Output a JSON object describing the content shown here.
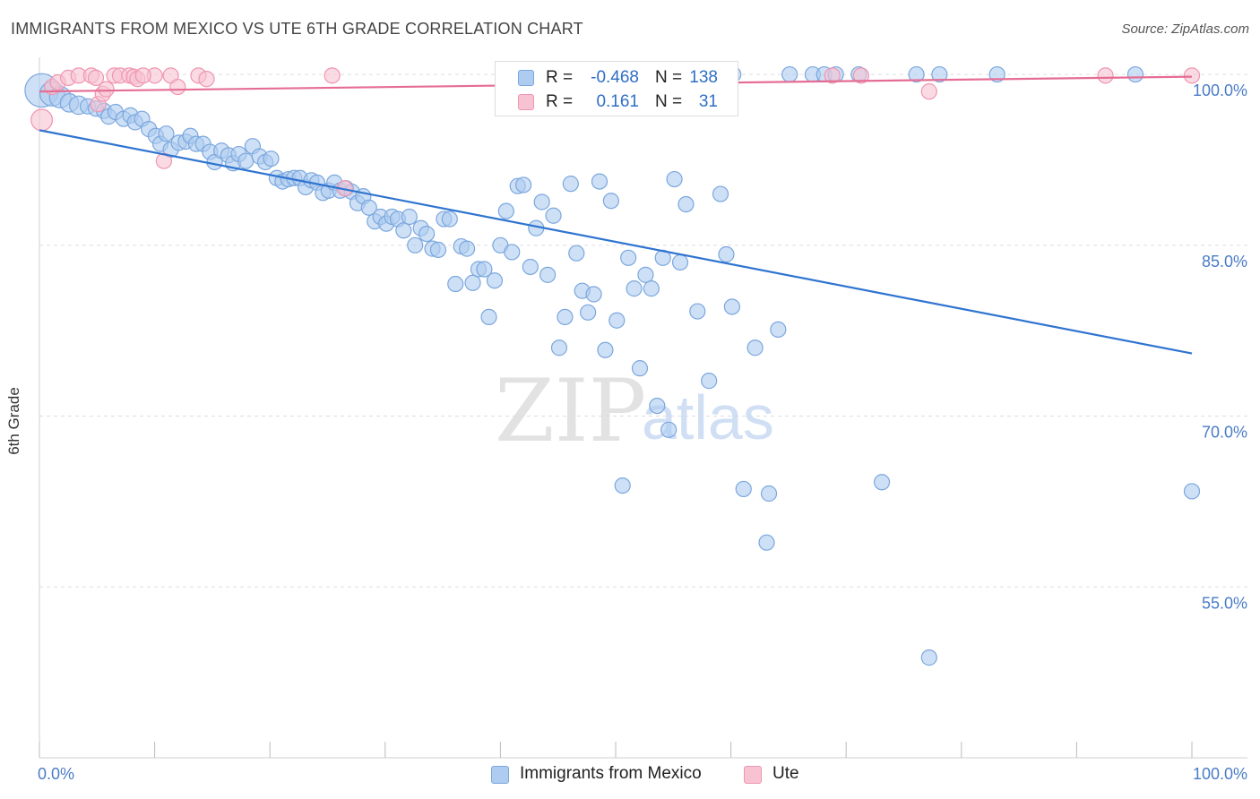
{
  "header": {
    "title": "IMMIGRANTS FROM MEXICO VS UTE 6TH GRADE CORRELATION CHART",
    "source": "Source: ZipAtlas.com"
  },
  "watermark": {
    "zip": "ZIP",
    "atlas": "atlas"
  },
  "stats": [
    {
      "r_label": "R =",
      "r_value": "-0.468",
      "n_label": "N =",
      "n_value": "138"
    },
    {
      "r_label": "R =",
      "r_value": "0.161",
      "n_label": "N =",
      "n_value": "31"
    }
  ],
  "legend": {
    "items": [
      {
        "label": "Immigrants from Mexico"
      },
      {
        "label": "Ute"
      }
    ]
  },
  "colors": {
    "mexico_fill": "#aecbf0",
    "mexico_stroke": "#7ba7de",
    "mexico_line": "#2f74d0",
    "ute_fill": "#f7c3d2",
    "ute_stroke": "#ef96b2",
    "ute_line": "#e56d94",
    "axis_label": "#4a7cc7",
    "grid": "#dddddd"
  },
  "chart_data": {
    "type": "scatter",
    "title": "IMMIGRANTS FROM MEXICO VS UTE 6TH GRADE CORRELATION CHART",
    "xlabel": "",
    "ylabel": "6th Grade",
    "xlim": [
      0,
      100
    ],
    "ylim": [
      40,
      101.5
    ],
    "x_tick_labels": [
      "0.0%",
      "100.0%"
    ],
    "y_ticks": [
      {
        "value": 100,
        "label": "100.0%"
      },
      {
        "value": 85,
        "label": "85.0%"
      },
      {
        "value": 70,
        "label": "70.0%"
      },
      {
        "value": 55,
        "label": "55.0%"
      }
    ],
    "grid": true,
    "legend_position": "bottom",
    "series": [
      {
        "name": "Immigrants from Mexico",
        "r": -0.468,
        "n": 138,
        "trend": [
          [
            0,
            95.1
          ],
          [
            100,
            75.5
          ]
        ],
        "points": [
          [
            0.2,
            98.6,
            22
          ],
          [
            1.1,
            98.3,
            16
          ],
          [
            1.8,
            98.0,
            14
          ],
          [
            2.6,
            97.5,
            12
          ],
          [
            3.4,
            97.3,
            12
          ],
          [
            4.2,
            97.2,
            10
          ],
          [
            4.9,
            97.0,
            10
          ],
          [
            5.6,
            96.8,
            10
          ],
          [
            6.0,
            96.3,
            10
          ],
          [
            6.6,
            96.7,
            10
          ],
          [
            7.3,
            96.1,
            10
          ],
          [
            7.9,
            96.4,
            10
          ],
          [
            8.3,
            95.8,
            10
          ],
          [
            8.9,
            96.1,
            10
          ],
          [
            9.5,
            95.2,
            10
          ],
          [
            10.1,
            94.6,
            10
          ],
          [
            10.5,
            93.9,
            10
          ],
          [
            11.0,
            94.8,
            10
          ],
          [
            11.4,
            93.4,
            10
          ],
          [
            12.1,
            94.0,
            10
          ],
          [
            12.7,
            94.1,
            10
          ],
          [
            13.1,
            94.6,
            10
          ],
          [
            13.6,
            93.9,
            10
          ],
          [
            14.2,
            93.9,
            10
          ],
          [
            14.8,
            93.2,
            10
          ],
          [
            15.2,
            92.3,
            10
          ],
          [
            15.8,
            93.3,
            10
          ],
          [
            16.4,
            92.9,
            10
          ],
          [
            16.8,
            92.2,
            10
          ],
          [
            17.3,
            93.0,
            10
          ],
          [
            17.9,
            92.4,
            10
          ],
          [
            18.5,
            93.7,
            10
          ],
          [
            19.1,
            92.8,
            10
          ],
          [
            19.6,
            92.3,
            10
          ],
          [
            20.1,
            92.6,
            10
          ],
          [
            20.6,
            90.9,
            10
          ],
          [
            21.1,
            90.6,
            10
          ],
          [
            21.6,
            90.8,
            10
          ],
          [
            22.1,
            90.9,
            10
          ],
          [
            22.6,
            90.9,
            10
          ],
          [
            23.1,
            90.1,
            10
          ],
          [
            23.6,
            90.7,
            10
          ],
          [
            24.1,
            90.5,
            10
          ],
          [
            24.6,
            89.6,
            10
          ],
          [
            25.1,
            89.8,
            10
          ],
          [
            25.6,
            90.5,
            10
          ],
          [
            26.1,
            89.8,
            10
          ],
          [
            26.6,
            90.0,
            10
          ],
          [
            27.1,
            89.7,
            10
          ],
          [
            27.6,
            88.7,
            10
          ],
          [
            28.1,
            89.3,
            10
          ],
          [
            28.6,
            88.3,
            10
          ],
          [
            29.1,
            87.1,
            10
          ],
          [
            29.6,
            87.5,
            10
          ],
          [
            30.1,
            86.9,
            10
          ],
          [
            30.6,
            87.5,
            10
          ],
          [
            31.1,
            87.3,
            10
          ],
          [
            31.6,
            86.3,
            10
          ],
          [
            32.1,
            87.5,
            10
          ],
          [
            32.6,
            85.0,
            10
          ],
          [
            33.1,
            86.5,
            10
          ],
          [
            33.6,
            86.0,
            10
          ],
          [
            34.1,
            84.7,
            10
          ],
          [
            34.6,
            84.6,
            10
          ],
          [
            35.1,
            87.3,
            10
          ],
          [
            35.6,
            87.3,
            10
          ],
          [
            36.1,
            81.6,
            10
          ],
          [
            36.6,
            84.9,
            10
          ],
          [
            37.1,
            84.7,
            10
          ],
          [
            37.6,
            81.7,
            10
          ],
          [
            38.1,
            82.9,
            10
          ],
          [
            38.6,
            82.9,
            10
          ],
          [
            39.0,
            78.7,
            10
          ],
          [
            39.5,
            81.9,
            10
          ],
          [
            40.0,
            85.0,
            10
          ],
          [
            40.5,
            88.0,
            10
          ],
          [
            41.0,
            84.4,
            10
          ],
          [
            41.5,
            90.2,
            10
          ],
          [
            42.0,
            90.3,
            10
          ],
          [
            42.6,
            83.1,
            10
          ],
          [
            43.1,
            86.5,
            10
          ],
          [
            43.6,
            88.8,
            10
          ],
          [
            44.1,
            82.4,
            10
          ],
          [
            44.6,
            87.6,
            10
          ],
          [
            45.1,
            76.0,
            10
          ],
          [
            45.6,
            78.7,
            10
          ],
          [
            46.1,
            90.4,
            10
          ],
          [
            46.6,
            84.3,
            10
          ],
          [
            47.1,
            81.0,
            10
          ],
          [
            47.6,
            79.1,
            10
          ],
          [
            48.1,
            80.7,
            10
          ],
          [
            48.6,
            90.6,
            10
          ],
          [
            49.1,
            75.8,
            10
          ],
          [
            49.6,
            88.9,
            10
          ],
          [
            50.1,
            78.4,
            10
          ],
          [
            50.6,
            63.9,
            10
          ],
          [
            51.1,
            83.9,
            10
          ],
          [
            51.6,
            81.2,
            10
          ],
          [
            52.1,
            74.2,
            10
          ],
          [
            52.6,
            82.4,
            10
          ],
          [
            53.1,
            81.2,
            10
          ],
          [
            53.6,
            70.9,
            10
          ],
          [
            54.1,
            83.9,
            10
          ],
          [
            54.6,
            68.8,
            10
          ],
          [
            55.1,
            90.8,
            10
          ],
          [
            55.6,
            83.5,
            10
          ],
          [
            56.1,
            88.6,
            10
          ],
          [
            57.1,
            79.2,
            10
          ],
          [
            58.1,
            73.1,
            10
          ],
          [
            59.1,
            89.5,
            10
          ],
          [
            59.6,
            84.2,
            10
          ],
          [
            60.1,
            79.6,
            10
          ],
          [
            61.1,
            63.6,
            10
          ],
          [
            62.1,
            76.0,
            10
          ],
          [
            63.1,
            58.9,
            10
          ],
          [
            63.3,
            63.2,
            10
          ],
          [
            64.1,
            77.6,
            10
          ],
          [
            65.1,
            100.0,
            10
          ],
          [
            67.1,
            100.0,
            10
          ],
          [
            68.1,
            100.0,
            10
          ],
          [
            69.1,
            100.0,
            10
          ],
          [
            71.1,
            100.0,
            10
          ],
          [
            73.1,
            64.2,
            10
          ],
          [
            76.1,
            100.0,
            10
          ],
          [
            77.2,
            48.8,
            10
          ],
          [
            78.1,
            100.0,
            10
          ],
          [
            83.1,
            100.0,
            10
          ],
          [
            95.1,
            100.0,
            10
          ],
          [
            100.0,
            63.4,
            10
          ],
          [
            60.2,
            100.0,
            10
          ],
          [
            59.6,
            100.0,
            10
          ]
        ]
      },
      {
        "name": "Ute",
        "r": 0.161,
        "n": 31,
        "trend": [
          [
            0,
            98.5
          ],
          [
            100,
            99.8
          ]
        ],
        "points": [
          [
            0.2,
            96.0,
            14
          ],
          [
            1.1,
            98.9,
            10
          ],
          [
            1.6,
            99.3,
            10
          ],
          [
            2.5,
            99.7,
            10
          ],
          [
            3.4,
            99.9,
            10
          ],
          [
            4.5,
            99.9,
            10
          ],
          [
            4.9,
            99.7,
            10
          ],
          [
            5.1,
            97.4,
            10
          ],
          [
            5.5,
            98.3,
            10
          ],
          [
            5.8,
            98.7,
            10
          ],
          [
            6.5,
            99.9,
            10
          ],
          [
            7.0,
            99.9,
            10
          ],
          [
            7.8,
            99.9,
            10
          ],
          [
            8.2,
            99.8,
            10
          ],
          [
            8.5,
            99.6,
            10
          ],
          [
            10.0,
            99.9,
            10
          ],
          [
            10.8,
            92.4,
            10
          ],
          [
            11.4,
            99.9,
            10
          ],
          [
            12.0,
            98.9,
            10
          ],
          [
            13.8,
            99.9,
            10
          ],
          [
            14.5,
            99.6,
            10
          ],
          [
            25.4,
            99.9,
            10
          ],
          [
            26.5,
            90.0,
            10
          ],
          [
            68.8,
            99.9,
            10
          ],
          [
            71.3,
            99.9,
            10
          ],
          [
            77.2,
            98.5,
            10
          ],
          [
            92.5,
            99.9,
            10
          ],
          [
            100.0,
            99.9,
            10
          ],
          [
            57.8,
            99.9,
            10
          ],
          [
            59.0,
            99.9,
            10
          ],
          [
            9.0,
            99.9,
            10
          ]
        ]
      }
    ]
  }
}
